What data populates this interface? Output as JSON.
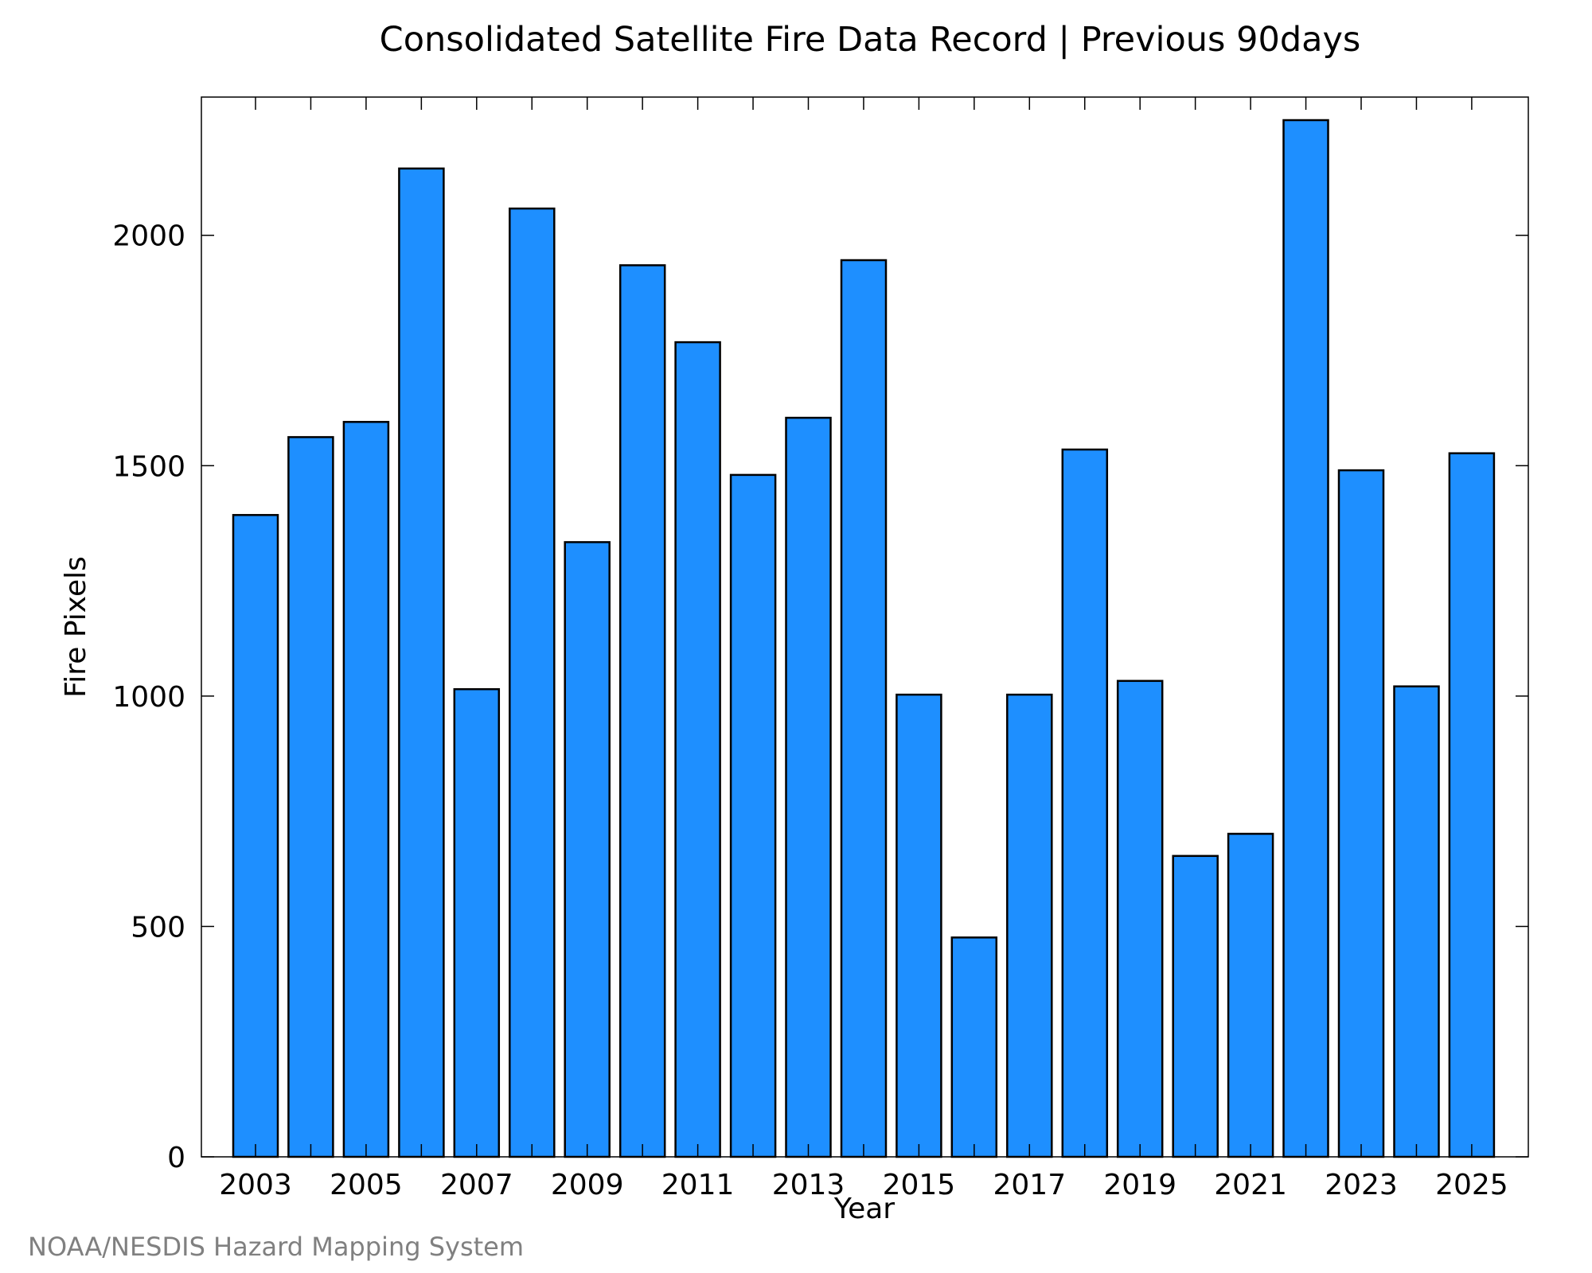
{
  "chart_data": {
    "type": "bar",
    "title": "Consolidated Satellite Fire Data Record | Previous 90days",
    "xlabel": "Year",
    "ylabel": "Fire Pixels",
    "categories": [
      "2003",
      "2004",
      "2005",
      "2006",
      "2007",
      "2008",
      "2009",
      "2010",
      "2011",
      "2012",
      "2013",
      "2014",
      "2015",
      "2016",
      "2017",
      "2018",
      "2019",
      "2020",
      "2021",
      "2022",
      "2023",
      "2024",
      "2025"
    ],
    "values": [
      1393,
      1562,
      1595,
      2145,
      1015,
      2058,
      1334,
      1935,
      1768,
      1480,
      1604,
      1946,
      1003,
      476,
      1003,
      1535,
      1033,
      653,
      701,
      2250,
      1490,
      1021,
      1527
    ],
    "ylim": [
      0,
      2300
    ],
    "yticks": [
      0,
      500,
      1000,
      1500,
      2000
    ],
    "xtick_labels": [
      "2003",
      "2005",
      "2007",
      "2009",
      "2011",
      "2013",
      "2015",
      "2017",
      "2019",
      "2021",
      "2023",
      "2025"
    ],
    "bar_color": "#1e8fff",
    "bar_edge_color": "#000000",
    "grid": false,
    "legend": "none"
  },
  "credit": "NOAA/NESDIS Hazard Mapping System"
}
